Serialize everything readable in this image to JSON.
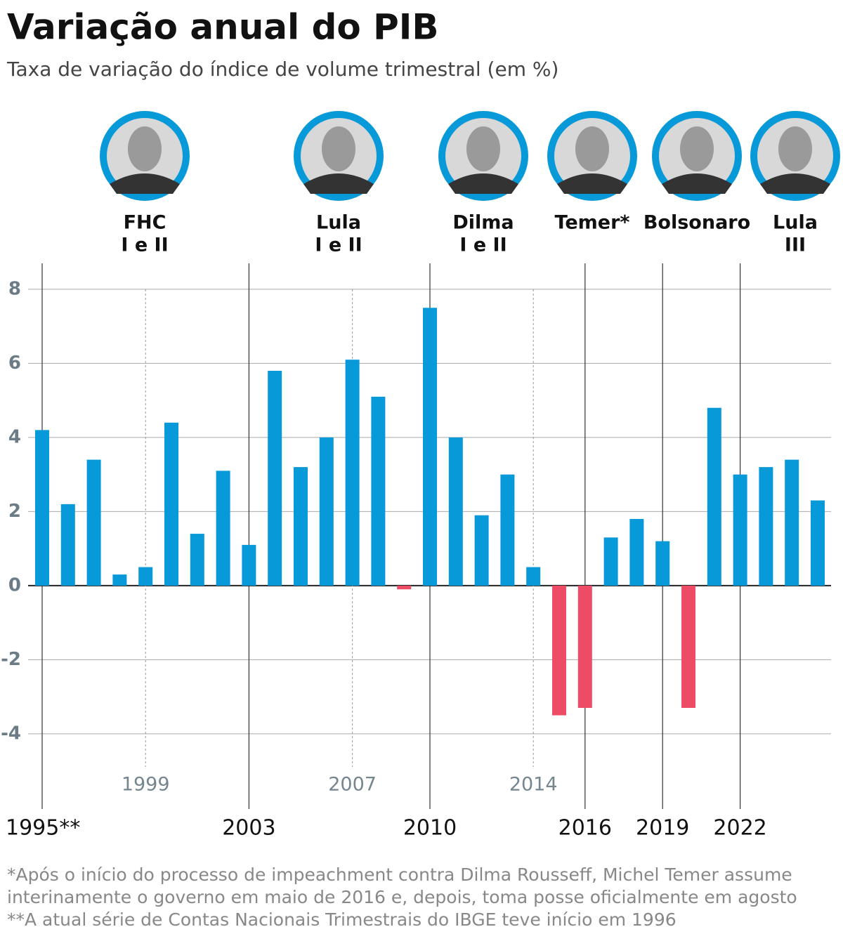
{
  "chart_data": {
    "type": "bar",
    "title": "Variação anual do PIB",
    "subtitle": "Taxa de variação do índice de volume trimestral (em %)",
    "presidents": [
      {
        "name": "FHC",
        "term": "I e II"
      },
      {
        "name": "Lula",
        "term": "I e II"
      },
      {
        "name": "Dilma",
        "term": "I e II"
      },
      {
        "name": "Temer*"
      },
      {
        "name": "Bolsonaro"
      },
      {
        "name": "Lula",
        "term": "III"
      }
    ],
    "categories": [
      "1995**",
      null,
      null,
      null,
      "1999",
      null,
      null,
      null,
      "2003",
      null,
      null,
      null,
      "2007",
      null,
      null,
      "2010",
      null,
      null,
      null,
      "2014",
      null,
      "2016",
      null,
      null,
      "2019",
      null,
      null,
      "2022",
      null,
      null,
      null
    ],
    "values": [
      4.2,
      2.2,
      3.4,
      0.3,
      0.5,
      4.4,
      1.4,
      3.1,
      1.1,
      5.8,
      3.2,
      4.0,
      6.1,
      5.1,
      -0.1,
      7.5,
      4.0,
      1.9,
      3.0,
      0.5,
      -3.5,
      -3.3,
      1.3,
      1.8,
      1.2,
      -3.3,
      4.8,
      3.0,
      3.2,
      3.4,
      2.3
    ],
    "color": "#0899d8",
    "negative_color": "#ee4b66",
    "ylim": [
      -6.03,
      8.7
    ],
    "yticks": [
      -4,
      -2,
      0,
      2,
      4,
      6,
      8
    ],
    "grid": true,
    "notes": [
      "*Após o início do processo de impeachment contra Dilma Rousseff, Michel Temer assume",
      "interinamente o governo em maio de 2016 e, depois, toma posse oficialmente em agosto",
      "**A atual série de Contas Nacionais Trimestrais do IBGE teve início em 1996"
    ]
  }
}
